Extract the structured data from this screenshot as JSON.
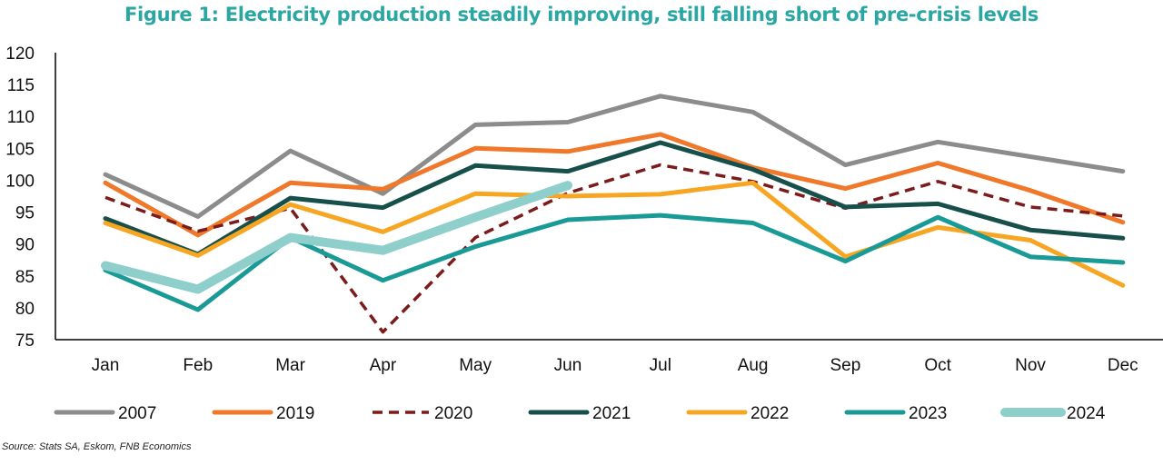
{
  "chart_data": {
    "type": "line",
    "title": "Figure 1: Electricity production steadily improving, still falling short of pre-crisis levels",
    "source": "Source: Stats SA, Eskom, FNB Economics",
    "categories": [
      "Jan",
      "Feb",
      "Mar",
      "Apr",
      "May",
      "Jun",
      "Jul",
      "Aug",
      "Sep",
      "Oct",
      "Nov",
      "Dec"
    ],
    "ylim": [
      75,
      120
    ],
    "yticks": [
      "75",
      "80",
      "85",
      "90",
      "95",
      "100",
      "105",
      "110",
      "115",
      "120"
    ],
    "grid": false,
    "legend_position": "bottom",
    "series": [
      {
        "name": "2007",
        "color": "#8c8c8c",
        "style": "solid",
        "width": 5,
        "values": [
          100.9,
          94.3,
          104.6,
          97.9,
          108.7,
          109.1,
          113.2,
          110.7,
          102.4,
          106.0,
          103.7,
          101.4
        ]
      },
      {
        "name": "2019",
        "color": "#f0782a",
        "style": "solid",
        "width": 5,
        "values": [
          99.6,
          91.4,
          99.6,
          98.6,
          105.0,
          104.5,
          107.2,
          102.0,
          98.7,
          102.7,
          98.4,
          93.4
        ]
      },
      {
        "name": "2020",
        "color": "#7b1c1c",
        "style": "dashed",
        "width": 3.5,
        "values": [
          97.3,
          92.0,
          95.6,
          76.2,
          91.0,
          98.0,
          102.4,
          99.8,
          95.6,
          99.8,
          95.8,
          94.4
        ]
      },
      {
        "name": "2021",
        "color": "#174f4b",
        "style": "solid",
        "width": 5,
        "values": [
          94.0,
          88.4,
          97.2,
          95.7,
          102.3,
          101.4,
          105.9,
          101.7,
          95.8,
          96.3,
          92.2,
          90.9
        ]
      },
      {
        "name": "2022",
        "color": "#f7a623",
        "style": "solid",
        "width": 5,
        "values": [
          93.3,
          88.2,
          96.2,
          91.9,
          97.9,
          97.5,
          97.8,
          99.6,
          88.0,
          92.6,
          90.6,
          83.5
        ]
      },
      {
        "name": "2023",
        "color": "#1a9a96",
        "style": "solid",
        "width": 5,
        "values": [
          85.9,
          79.7,
          91.0,
          84.3,
          89.6,
          93.8,
          94.5,
          93.3,
          87.3,
          94.2,
          88.0,
          87.1
        ]
      },
      {
        "name": "2024",
        "color": "#8ecfcc",
        "style": "solid",
        "width": 10,
        "values": [
          86.6,
          82.9,
          91.0,
          89.0,
          94.2,
          99.2,
          null,
          null,
          null,
          null,
          null,
          null
        ]
      }
    ]
  }
}
